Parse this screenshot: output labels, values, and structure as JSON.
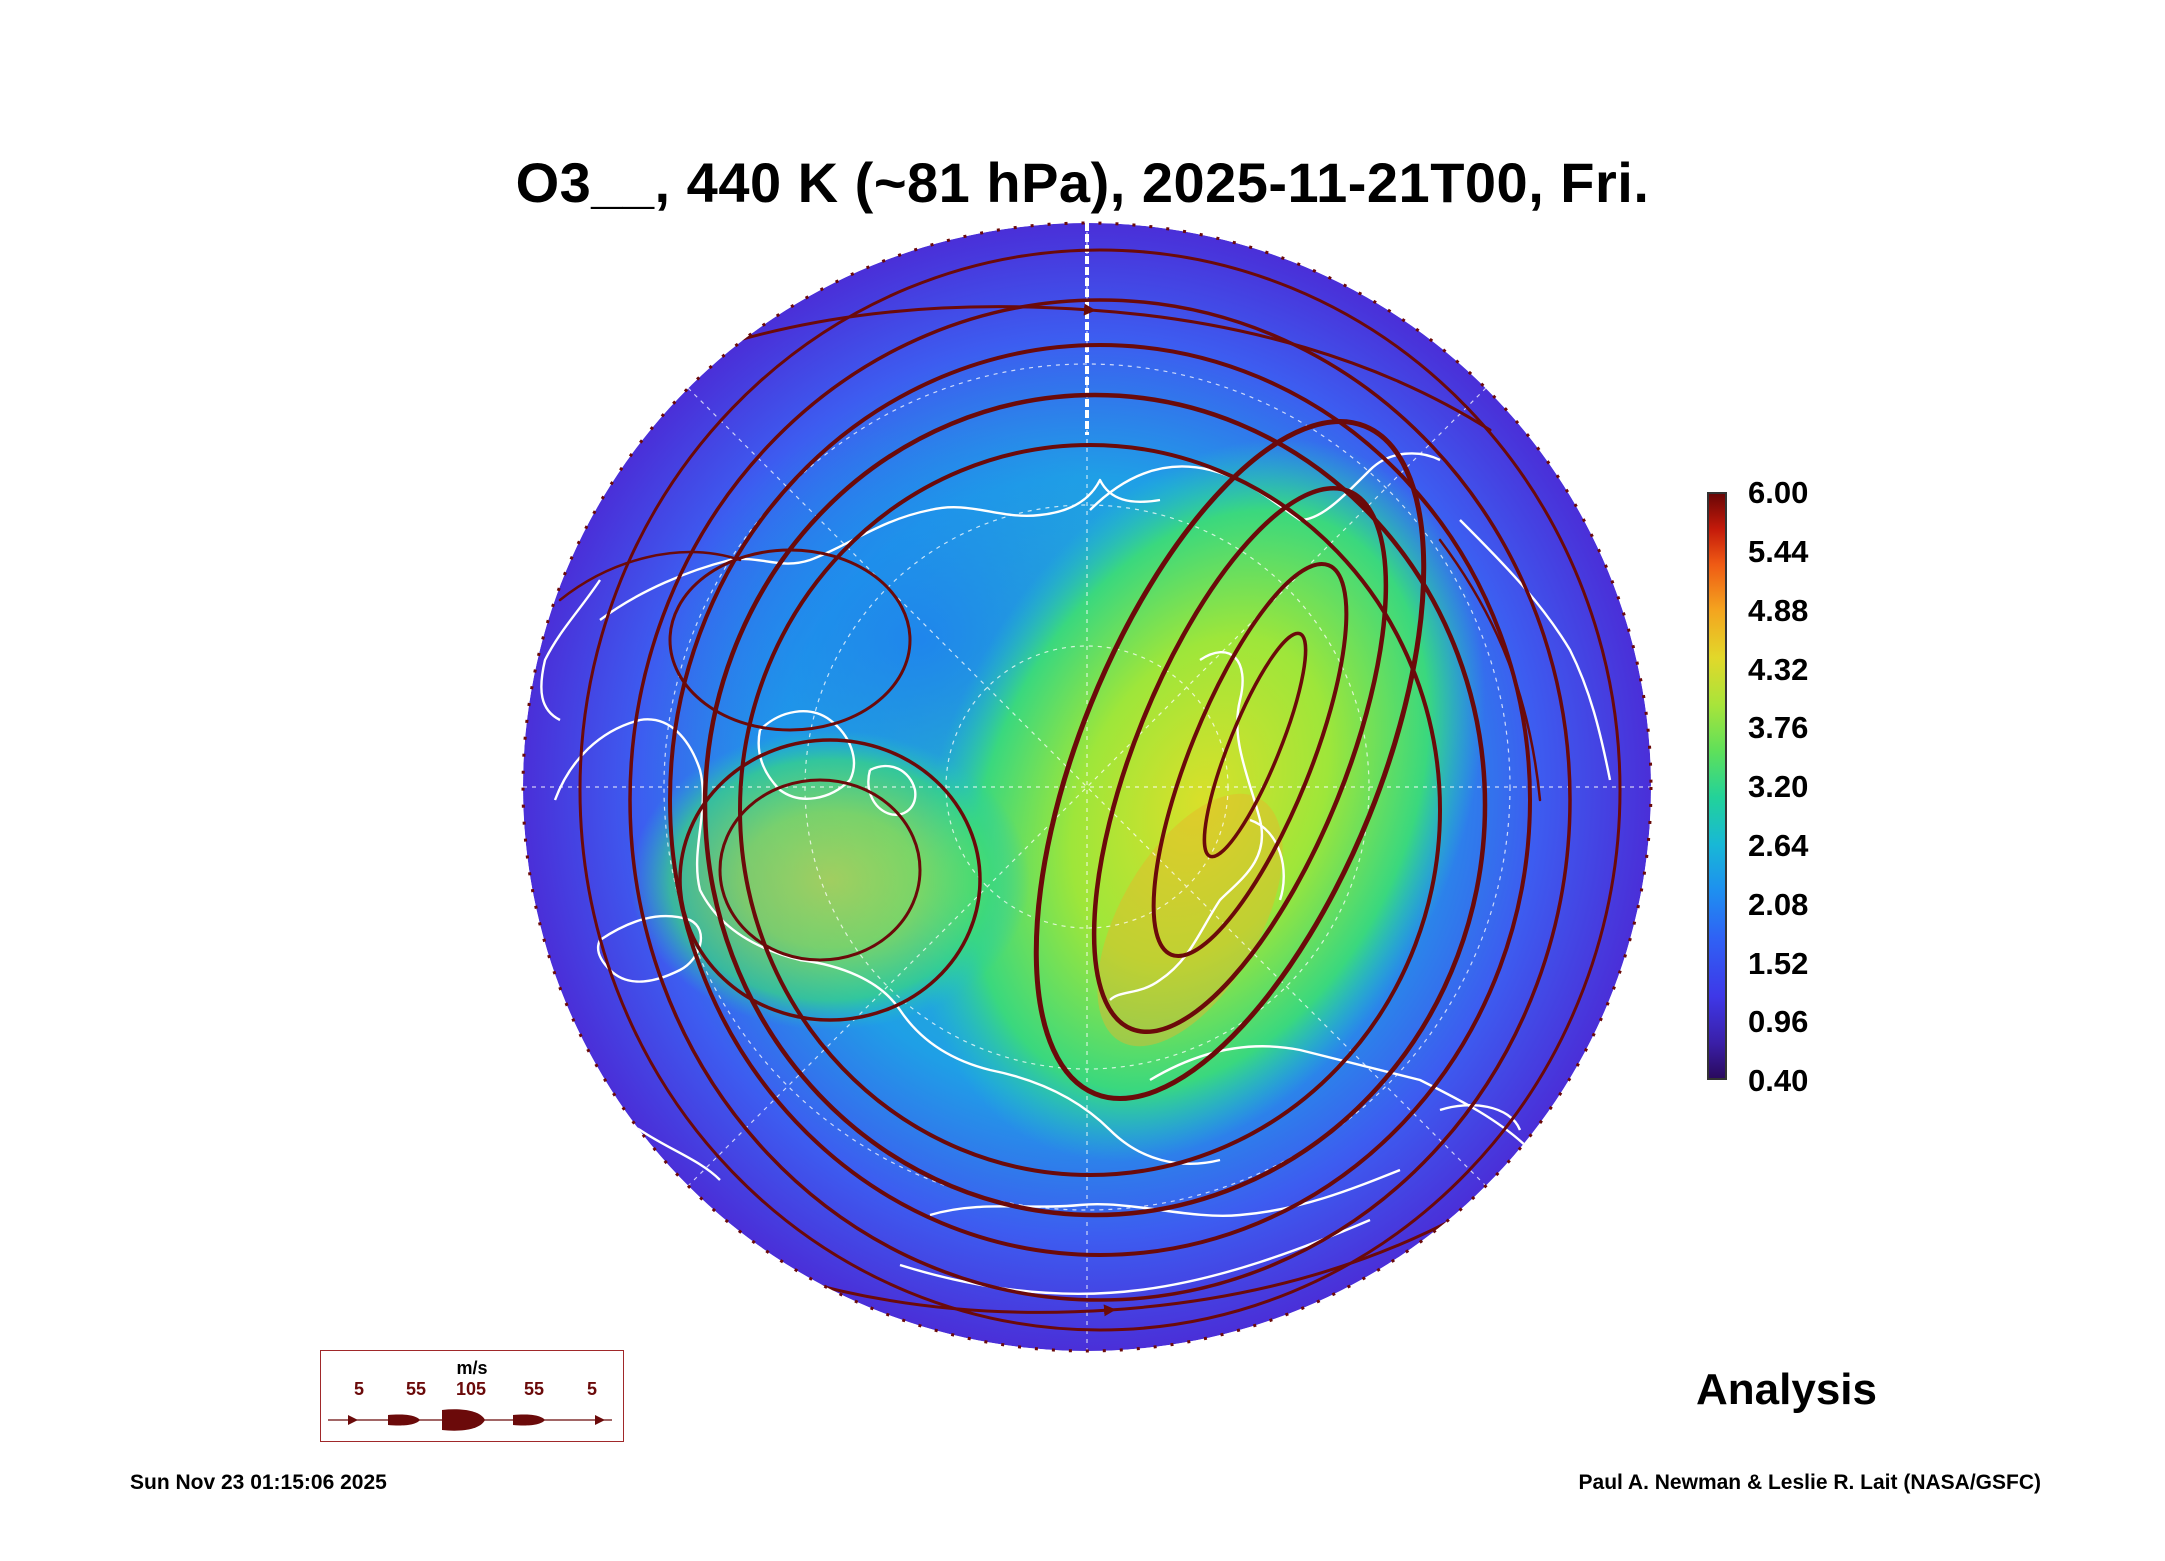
{
  "title": "O3__, 440 K (~81 hPa), 2025-11-21T00, Fri.",
  "colorbar": {
    "ticks": [
      "6.00",
      "5.44",
      "4.88",
      "4.32",
      "3.76",
      "3.20",
      "2.64",
      "2.08",
      "1.52",
      "0.96",
      "0.40"
    ],
    "min": 0.4,
    "max": 6.0
  },
  "legend": {
    "unit": "m/s",
    "speeds": [
      "5",
      "55",
      "105",
      "55",
      "5"
    ],
    "arrow_color": "#6b0a0a"
  },
  "label": "Analysis",
  "datestamp": "Sun Nov 23 01:15:06 2025",
  "credit": "Paul A. Newman & Leslie R. Lait (NASA/GSFC)",
  "colors": {
    "streamline": "#6b0a0a",
    "coastline": "#ffffff",
    "low": "#3a1fa8",
    "high": "#6a0606"
  }
}
